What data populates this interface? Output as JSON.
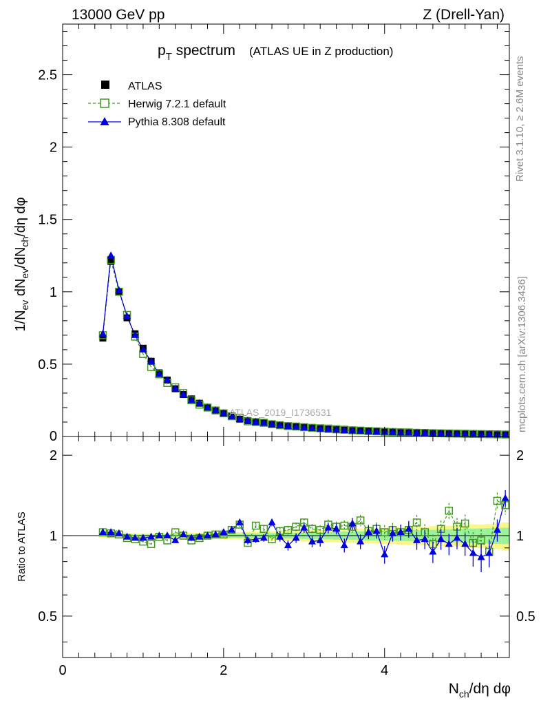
{
  "header": {
    "left": "13000 GeV pp",
    "right": "Z (Drell-Yan)"
  },
  "side": {
    "rivet": "Rivet 3.1.10, ≥ 2.6M events",
    "mcplots": "mcplots.cern.ch [arXiv:1306.3436]"
  },
  "title": {
    "main": "p",
    "sub": "T",
    "rest": " spectrum",
    "note": "(ATLAS UE in Z production)"
  },
  "watermark": "ATLAS_2019_I1736531",
  "labels": {
    "ylabel_top": "1/N_ev dN_ev/dN_ch/dη dφ",
    "ylabel_bottom": "Ratio to ATLAS",
    "xlabel": "N_ch/dη dφ"
  },
  "colors": {
    "data": "#000000",
    "herwig": "#3f9a1f",
    "pythia": "#0000dd",
    "band_yellow": "#fbf58a",
    "band_green": "#9af29a"
  },
  "chart_data": [
    {
      "type": "scatter",
      "panel": "main",
      "title": "pT spectrum (ATLAS UE in Z production)",
      "xlabel": "N_ch/dη dφ",
      "ylabel": "1/N_ev dN_ev/dN_ch/dη dφ",
      "xlim": [
        0,
        5.55
      ],
      "ylim": [
        0,
        2.85
      ],
      "yticks": [
        "0",
        "0.5",
        "1",
        "1.5",
        "2",
        "2.5"
      ],
      "legend": [
        "ATLAS",
        "Herwig 7.2.1 default",
        "Pythia 8.308 default"
      ],
      "x": [
        0.5,
        0.6,
        0.7,
        0.8,
        0.9,
        1.0,
        1.1,
        1.2,
        1.3,
        1.4,
        1.5,
        1.6,
        1.7,
        1.8,
        1.9,
        2.0,
        2.1,
        2.2,
        2.3,
        2.4,
        2.5,
        2.6,
        2.7,
        2.8,
        2.9,
        3.0,
        3.1,
        3.2,
        3.3,
        3.4,
        3.5,
        3.6,
        3.7,
        3.8,
        3.9,
        4.0,
        4.1,
        4.2,
        4.3,
        4.4,
        4.5,
        4.6,
        4.7,
        4.8,
        4.9,
        5.0,
        5.1,
        5.2,
        5.3,
        5.4,
        5.5
      ],
      "series": [
        {
          "name": "ATLAS",
          "values": [
            0.68,
            1.21,
            1.0,
            0.82,
            0.71,
            0.61,
            0.52,
            0.44,
            0.39,
            0.33,
            0.29,
            0.26,
            0.23,
            0.2,
            0.18,
            0.16,
            0.14,
            0.12,
            0.11,
            0.1,
            0.095,
            0.085,
            0.078,
            0.072,
            0.067,
            0.062,
            0.058,
            0.054,
            0.05,
            0.047,
            0.044,
            0.041,
            0.038,
            0.036,
            0.034,
            0.032,
            0.03,
            0.028,
            0.027,
            0.025,
            0.024,
            0.022,
            0.021,
            0.02,
            0.019,
            0.018,
            0.017,
            0.016,
            0.015,
            0.014,
            0.013
          ]
        },
        {
          "name": "Herwig 7.2.1 default",
          "values": [
            0.7,
            1.22,
            1.0,
            0.84,
            0.69,
            0.57,
            0.48,
            0.43,
            0.37,
            0.34,
            0.3,
            0.25,
            0.22,
            0.2,
            0.18,
            0.16,
            0.14,
            0.13,
            0.105,
            0.1,
            0.095,
            0.085,
            0.078,
            0.072,
            0.069,
            0.064,
            0.06,
            0.057,
            0.055,
            0.05,
            0.047,
            0.043,
            0.041,
            0.038,
            0.036,
            0.033,
            0.031,
            0.029,
            0.028,
            0.026,
            0.025,
            0.023,
            0.022,
            0.021,
            0.02,
            0.019,
            0.018,
            0.017,
            0.016,
            0.015,
            0.014
          ]
        },
        {
          "name": "Pythia 8.308 default",
          "values": [
            0.71,
            1.25,
            1.01,
            0.83,
            0.7,
            0.6,
            0.52,
            0.43,
            0.39,
            0.33,
            0.29,
            0.25,
            0.23,
            0.2,
            0.18,
            0.16,
            0.14,
            0.12,
            0.11,
            0.1,
            0.093,
            0.083,
            0.076,
            0.07,
            0.066,
            0.061,
            0.057,
            0.053,
            0.05,
            0.046,
            0.043,
            0.04,
            0.038,
            0.035,
            0.033,
            0.031,
            0.029,
            0.027,
            0.026,
            0.024,
            0.023,
            0.021,
            0.02,
            0.019,
            0.018,
            0.017,
            0.016,
            0.015,
            0.014,
            0.013,
            0.012
          ]
        }
      ]
    },
    {
      "type": "scatter",
      "panel": "ratio",
      "ylabel": "Ratio to ATLAS",
      "xlabel": "N_ch/dη dφ",
      "xlim": [
        0,
        5.55
      ],
      "ylim": [
        0.35,
        2.35
      ],
      "xticks": [
        "0",
        "2",
        "4"
      ],
      "yticks": [
        "0.5",
        "1",
        "2"
      ],
      "x": [
        0.5,
        0.6,
        0.7,
        0.8,
        0.9,
        1.0,
        1.1,
        1.2,
        1.3,
        1.4,
        1.5,
        1.6,
        1.7,
        1.8,
        1.9,
        2.0,
        2.1,
        2.2,
        2.3,
        2.4,
        2.5,
        2.6,
        2.7,
        2.8,
        2.9,
        3.0,
        3.1,
        3.2,
        3.3,
        3.4,
        3.5,
        3.6,
        3.7,
        3.8,
        3.9,
        4.0,
        4.1,
        4.2,
        4.3,
        4.4,
        4.5,
        4.6,
        4.7,
        4.8,
        4.9,
        5.0,
        5.1,
        5.2,
        5.3,
        5.4,
        5.5
      ],
      "bands": {
        "yellow": [
          0.02,
          0.02,
          0.02,
          0.02,
          0.02,
          0.02,
          0.02,
          0.02,
          0.02,
          0.02,
          0.025,
          0.025,
          0.025,
          0.025,
          0.025,
          0.03,
          0.03,
          0.03,
          0.035,
          0.035,
          0.04,
          0.04,
          0.04,
          0.045,
          0.045,
          0.05,
          0.05,
          0.05,
          0.055,
          0.055,
          0.06,
          0.06,
          0.06,
          0.065,
          0.065,
          0.07,
          0.07,
          0.075,
          0.075,
          0.08,
          0.08,
          0.085,
          0.085,
          0.09,
          0.09,
          0.095,
          0.1,
          0.1,
          0.105,
          0.11,
          0.12
        ],
        "green": [
          0.01,
          0.01,
          0.01,
          0.01,
          0.01,
          0.01,
          0.01,
          0.01,
          0.012,
          0.012,
          0.012,
          0.012,
          0.014,
          0.014,
          0.015,
          0.016,
          0.017,
          0.018,
          0.02,
          0.02,
          0.022,
          0.022,
          0.024,
          0.025,
          0.026,
          0.028,
          0.03,
          0.03,
          0.032,
          0.034,
          0.035,
          0.036,
          0.038,
          0.04,
          0.04,
          0.042,
          0.044,
          0.045,
          0.046,
          0.048,
          0.05,
          0.052,
          0.054,
          0.056,
          0.058,
          0.06,
          0.062,
          0.064,
          0.066,
          0.068,
          0.07
        ]
      },
      "series": [
        {
          "name": "Herwig 7.2.1 default",
          "values": [
            1.03,
            1.02,
            1.01,
            0.98,
            0.97,
            0.95,
            0.93,
            0.99,
            0.96,
            1.03,
            1.0,
            0.96,
            0.98,
            1.0,
            1.01,
            1.01,
            1.05,
            1.1,
            0.94,
            1.09,
            1.06,
            0.97,
            1.04,
            1.05,
            1.08,
            1.12,
            1.06,
            1.05,
            1.1,
            1.08,
            1.09,
            1.08,
            1.14,
            1.04,
            1.06,
            1.03,
            1.05,
            1.03,
            1.05,
            1.12,
            1.03,
            0.93,
            1.06,
            1.24,
            1.08,
            1.11,
            0.94,
            0.96,
            0.87,
            1.35,
            1.3
          ],
          "errors": [
            0.01,
            0.01,
            0.01,
            0.01,
            0.01,
            0.01,
            0.01,
            0.01,
            0.01,
            0.01,
            0.01,
            0.01,
            0.01,
            0.015,
            0.015,
            0.02,
            0.02,
            0.02,
            0.03,
            0.03,
            0.03,
            0.035,
            0.035,
            0.04,
            0.04,
            0.04,
            0.045,
            0.045,
            0.05,
            0.05,
            0.05,
            0.055,
            0.055,
            0.06,
            0.06,
            0.065,
            0.065,
            0.07,
            0.07,
            0.075,
            0.075,
            0.08,
            0.08,
            0.085,
            0.085,
            0.09,
            0.09,
            0.095,
            0.1,
            0.1,
            0.1
          ]
        },
        {
          "name": "Pythia 8.308 default",
          "values": [
            1.03,
            1.03,
            1.02,
            0.99,
            0.98,
            0.98,
            0.99,
            1.0,
            1.0,
            0.96,
            1.01,
            0.98,
            0.99,
            1.0,
            1.01,
            1.03,
            1.05,
            1.12,
            0.96,
            0.97,
            0.98,
            1.12,
            0.99,
            0.92,
            0.98,
            1.07,
            0.95,
            0.96,
            1.07,
            1.06,
            0.92,
            1.11,
            0.95,
            1.03,
            1.04,
            0.85,
            1.02,
            1.03,
            1.06,
            0.96,
            0.97,
            0.87,
            0.97,
            0.93,
            0.98,
            0.93,
            0.86,
            0.83,
            0.86,
            1.05,
            1.38
          ],
          "errors": [
            0.01,
            0.01,
            0.01,
            0.01,
            0.01,
            0.01,
            0.01,
            0.01,
            0.01,
            0.01,
            0.015,
            0.015,
            0.015,
            0.015,
            0.015,
            0.02,
            0.02,
            0.02,
            0.03,
            0.03,
            0.03,
            0.035,
            0.04,
            0.04,
            0.04,
            0.045,
            0.045,
            0.05,
            0.05,
            0.05,
            0.055,
            0.055,
            0.06,
            0.06,
            0.065,
            0.065,
            0.07,
            0.07,
            0.075,
            0.075,
            0.08,
            0.08,
            0.085,
            0.085,
            0.09,
            0.09,
            0.095,
            0.1,
            0.1,
            0.1,
            0.1
          ]
        }
      ]
    }
  ]
}
